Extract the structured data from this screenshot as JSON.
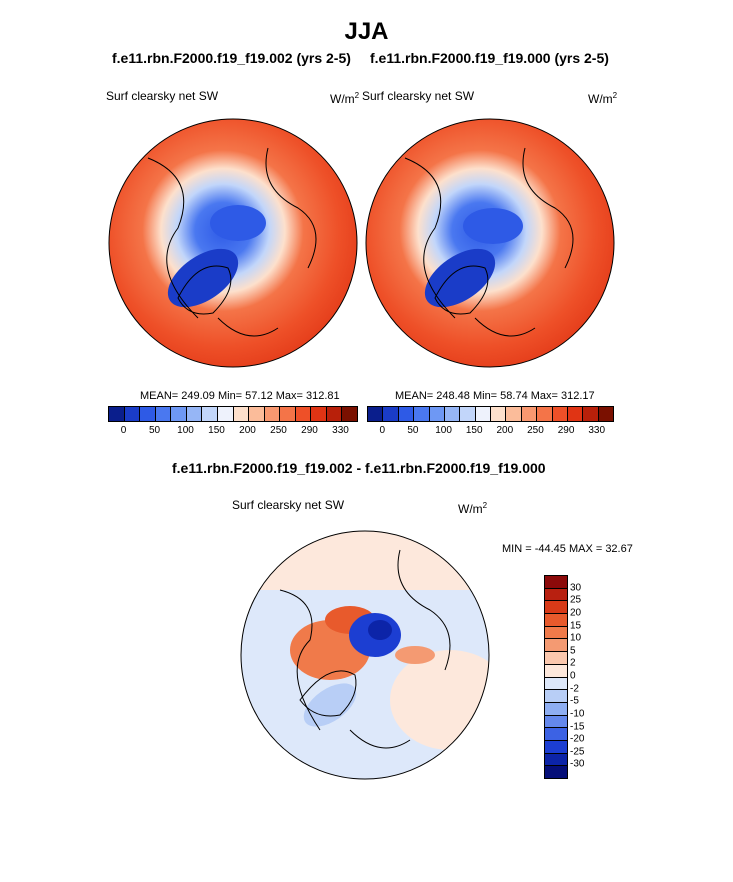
{
  "title": "JJA",
  "panels": [
    {
      "case": "f.e11.rbn.F2000.f19_f19.002 (yrs 2-5)",
      "variable": "Surf clearsky net SW",
      "unit": "W/m",
      "unit_sup": "2",
      "stats": "MEAN= 249.09  Min=  57.12  Max= 312.81"
    },
    {
      "case": "f.e11.rbn.F2000.f19_f19.000 (yrs 2-5)",
      "variable": "Surf clearsky net SW",
      "unit": "W/m",
      "unit_sup": "2",
      "stats": "MEAN= 248.48  Min=  58.74  Max= 312.17"
    }
  ],
  "diff": {
    "title": "f.e11.rbn.F2000.f19_f19.002 - f.e11.rbn.F2000.f19_f19.000",
    "variable": "Surf clearsky net SW",
    "unit": "W/m",
    "unit_sup": "2",
    "stats": "MIN = -44.45 MAX =  32.67"
  },
  "abs_colorbar": {
    "colors": [
      "#0a1e8c",
      "#1a3cc8",
      "#2e5ae6",
      "#4a78f0",
      "#6e98f4",
      "#96b6f6",
      "#c2d6fa",
      "#eef2fc",
      "#fde0cc",
      "#fbbc9a",
      "#f89870",
      "#f47448",
      "#ee5028",
      "#e03414",
      "#b8200a",
      "#7a1000"
    ],
    "ticks": [
      "0",
      "50",
      "100",
      "150",
      "200",
      "250",
      "290",
      "330"
    ]
  },
  "diff_colorbar": {
    "colors": [
      "#8c0a0a",
      "#b82010",
      "#d83a18",
      "#e85a2c",
      "#f07a4a",
      "#f49a72",
      "#fbc8ae",
      "#fde8dc",
      "#dde8fa",
      "#b8cef6",
      "#8eaef2",
      "#6488ec",
      "#3c62e4",
      "#1c3ed2",
      "#0c24a8",
      "#050e78"
    ],
    "ticks": [
      "30",
      "25",
      "20",
      "15",
      "10",
      "5",
      "2",
      "0",
      "-2",
      "-5",
      "-10",
      "-15",
      "-20",
      "-25",
      "-30"
    ]
  }
}
